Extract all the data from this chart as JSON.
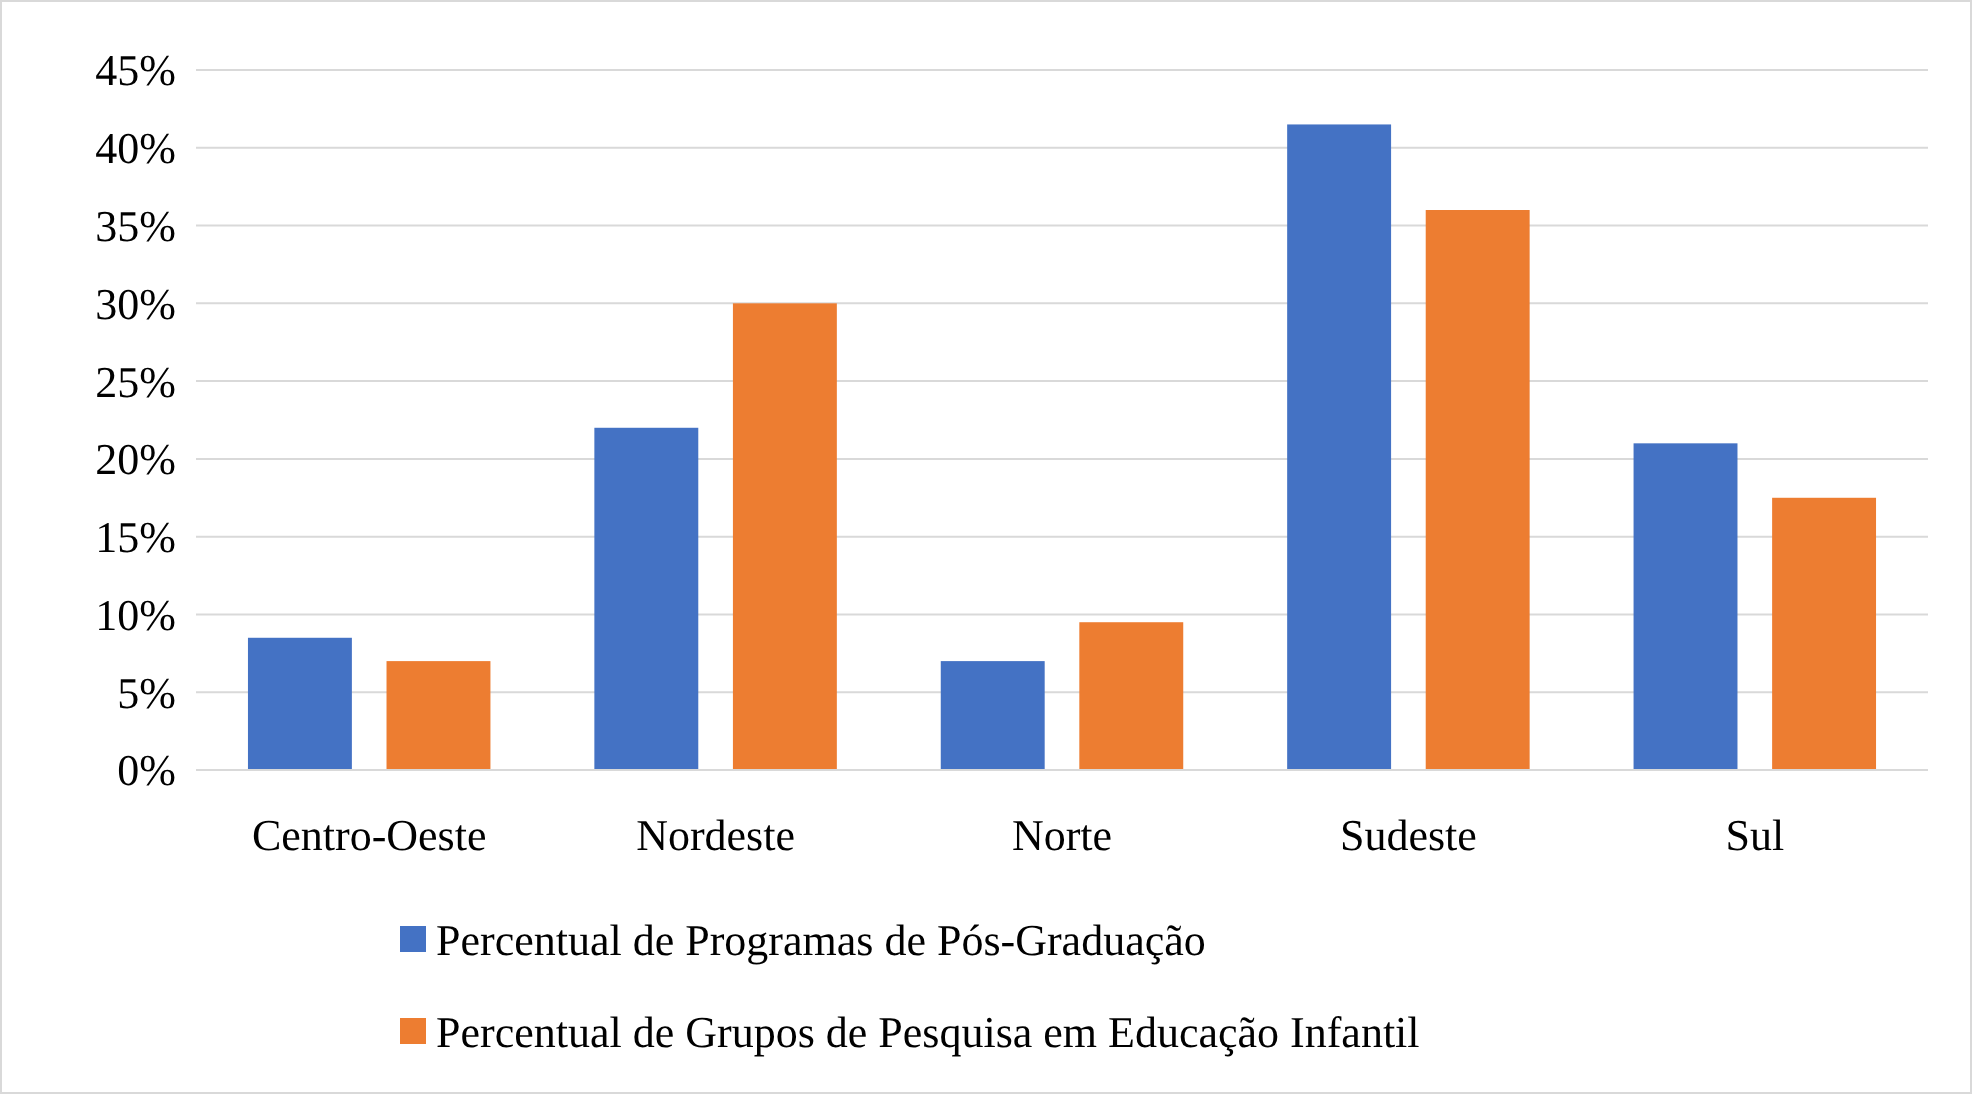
{
  "chart_data": {
    "type": "bar",
    "categories": [
      "Centro-Oeste",
      "Nordeste",
      "Norte",
      "Sudeste",
      "Sul"
    ],
    "series": [
      {
        "name": "Percentual de Programas de Pós-Graduação",
        "color": "#4472c4",
        "values": [
          8.5,
          22,
          7,
          41.5,
          21
        ]
      },
      {
        "name": "Percentual de Grupos de Pesquisa em Educação Infantil",
        "color": "#ed7d31",
        "values": [
          7,
          30,
          9.5,
          36,
          17.5
        ]
      }
    ],
    "ylim": [
      0,
      45
    ],
    "yticks": [
      {
        "value": 0,
        "label": "0%"
      },
      {
        "value": 5,
        "label": "5%"
      },
      {
        "value": 10,
        "label": "10%"
      },
      {
        "value": 15,
        "label": "15%"
      },
      {
        "value": 20,
        "label": "20%"
      },
      {
        "value": 25,
        "label": "25%"
      },
      {
        "value": 30,
        "label": "30%"
      },
      {
        "value": 35,
        "label": "35%"
      },
      {
        "value": 40,
        "label": "40%"
      },
      {
        "value": 45,
        "label": "45%"
      }
    ],
    "grid": "y",
    "legend": "bottom"
  }
}
